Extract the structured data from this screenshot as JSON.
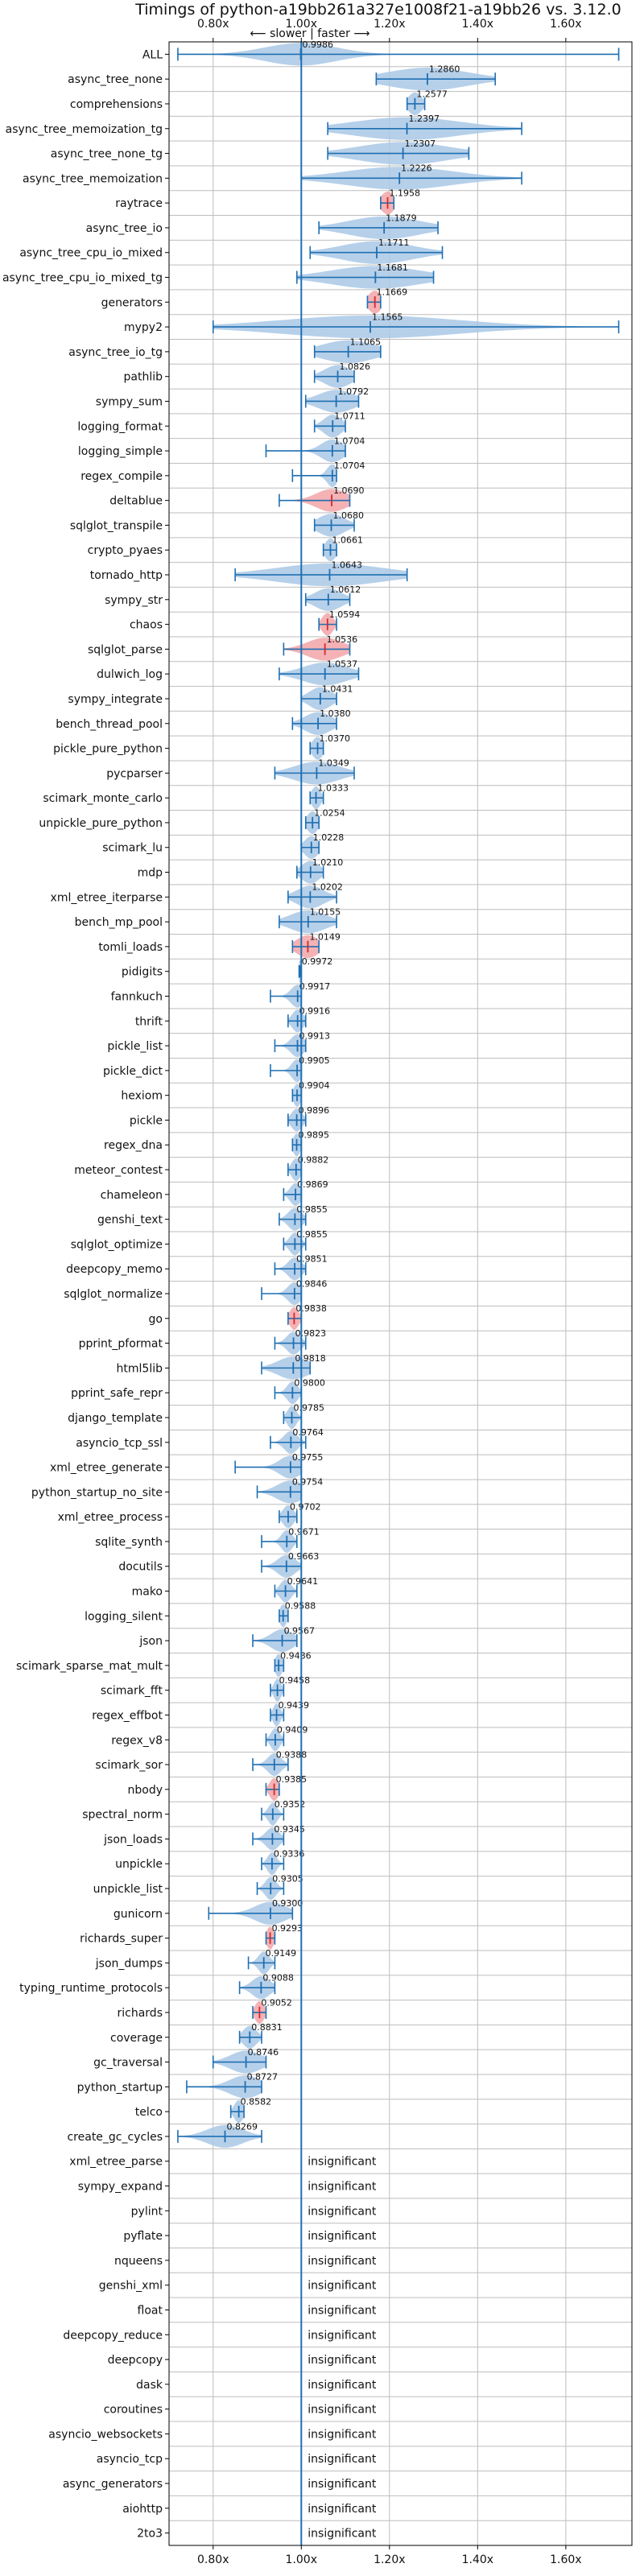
{
  "chart_data": {
    "type": "violin",
    "title": "Timings of python-a19bb261a327e1008f21-a19bb26 vs. 3.12.0",
    "subtitle": "⟵ slower | faster ⟶",
    "xlim": [
      0.7,
      1.75
    ],
    "xticks": [
      "0.80x",
      "1.00x",
      "1.20x",
      "1.40x",
      "1.60x"
    ],
    "xtick_values": [
      0.8,
      1.0,
      1.2,
      1.4,
      1.6
    ],
    "grid": true,
    "insignificant_label": "insignificant",
    "benchmarks": [
      {
        "name": "ALL",
        "value": 0.9986,
        "label": "0.9986",
        "low": 0.72,
        "high": 1.72,
        "spread": 0.08,
        "color": "blue"
      },
      {
        "name": "async_tree_none",
        "value": 1.286,
        "label": "1.2860",
        "low": 1.17,
        "high": 1.44,
        "spread": 0.09,
        "color": "blue"
      },
      {
        "name": "comprehensions",
        "value": 1.2577,
        "label": "1.2577",
        "low": 1.24,
        "high": 1.28,
        "spread": 0.015,
        "color": "blue"
      },
      {
        "name": "async_tree_memoization_tg",
        "value": 1.2397,
        "label": "1.2397",
        "low": 1.06,
        "high": 1.5,
        "spread": 0.12,
        "color": "blue"
      },
      {
        "name": "async_tree_none_tg",
        "value": 1.2307,
        "label": "1.2307",
        "low": 1.06,
        "high": 1.38,
        "spread": 0.1,
        "color": "blue"
      },
      {
        "name": "async_tree_memoization",
        "value": 1.2226,
        "label": "1.2226",
        "low": 1.0,
        "high": 1.5,
        "spread": 0.12,
        "color": "blue"
      },
      {
        "name": "raytrace",
        "value": 1.1958,
        "label": "1.1958",
        "low": 1.18,
        "high": 1.21,
        "spread": 0.015,
        "color": "red"
      },
      {
        "name": "async_tree_io",
        "value": 1.1879,
        "label": "1.1879",
        "low": 1.04,
        "high": 1.31,
        "spread": 0.08,
        "color": "blue"
      },
      {
        "name": "async_tree_cpu_io_mixed",
        "value": 1.1711,
        "label": "1.1711",
        "low": 1.02,
        "high": 1.32,
        "spread": 0.08,
        "color": "blue"
      },
      {
        "name": "async_tree_cpu_io_mixed_tg",
        "value": 1.1681,
        "label": "1.1681",
        "low": 0.99,
        "high": 1.3,
        "spread": 0.1,
        "color": "blue"
      },
      {
        "name": "generators",
        "value": 1.1669,
        "label": "1.1669",
        "low": 1.15,
        "high": 1.18,
        "spread": 0.015,
        "color": "red"
      },
      {
        "name": "mypy2",
        "value": 1.1565,
        "label": "1.1565",
        "low": 0.8,
        "high": 1.72,
        "spread": 0.2,
        "color": "blue"
      },
      {
        "name": "async_tree_io_tg",
        "value": 1.1065,
        "label": "1.1065",
        "low": 1.03,
        "high": 1.18,
        "spread": 0.06,
        "color": "blue"
      },
      {
        "name": "pathlib",
        "value": 1.0826,
        "label": "1.0826",
        "low": 1.03,
        "high": 1.12,
        "spread": 0.03,
        "color": "blue"
      },
      {
        "name": "sympy_sum",
        "value": 1.0792,
        "label": "1.0792",
        "low": 1.01,
        "high": 1.13,
        "spread": 0.04,
        "color": "blue"
      },
      {
        "name": "logging_format",
        "value": 1.0711,
        "label": "1.0711",
        "low": 1.03,
        "high": 1.1,
        "spread": 0.02,
        "color": "blue"
      },
      {
        "name": "logging_simple",
        "value": 1.0704,
        "label": "1.0704",
        "low": 0.92,
        "high": 1.1,
        "spread": 0.025,
        "color": "blue"
      },
      {
        "name": "regex_compile",
        "value": 1.0704,
        "label": "1.0704",
        "low": 0.98,
        "high": 1.08,
        "spread": 0.012,
        "color": "blue"
      },
      {
        "name": "deltablue",
        "value": 1.069,
        "label": "1.0690",
        "low": 0.95,
        "high": 1.11,
        "spread": 0.035,
        "color": "red"
      },
      {
        "name": "sqlglot_transpile",
        "value": 1.068,
        "label": "1.0680",
        "low": 1.03,
        "high": 1.12,
        "spread": 0.03,
        "color": "blue"
      },
      {
        "name": "crypto_pyaes",
        "value": 1.0661,
        "label": "1.0661",
        "low": 1.05,
        "high": 1.08,
        "spread": 0.012,
        "color": "blue"
      },
      {
        "name": "tornado_http",
        "value": 1.0643,
        "label": "1.0643",
        "low": 0.85,
        "high": 1.24,
        "spread": 0.12,
        "color": "blue"
      },
      {
        "name": "sympy_str",
        "value": 1.0612,
        "label": "1.0612",
        "low": 1.01,
        "high": 1.11,
        "spread": 0.03,
        "color": "blue"
      },
      {
        "name": "chaos",
        "value": 1.0594,
        "label": "1.0594",
        "low": 1.04,
        "high": 1.08,
        "spread": 0.012,
        "color": "red"
      },
      {
        "name": "sqlglot_parse",
        "value": 1.0536,
        "label": "1.0536",
        "low": 0.96,
        "high": 1.11,
        "spread": 0.04,
        "color": "red"
      },
      {
        "name": "dulwich_log",
        "value": 1.0537,
        "label": "1.0537",
        "low": 0.95,
        "high": 1.13,
        "spread": 0.05,
        "color": "blue"
      },
      {
        "name": "sympy_integrate",
        "value": 1.0431,
        "label": "1.0431",
        "low": 1.0,
        "high": 1.08,
        "spread": 0.025,
        "color": "blue"
      },
      {
        "name": "bench_thread_pool",
        "value": 1.038,
        "label": "1.0380",
        "low": 0.98,
        "high": 1.08,
        "spread": 0.03,
        "color": "blue"
      },
      {
        "name": "pickle_pure_python",
        "value": 1.037,
        "label": "1.0370",
        "low": 1.02,
        "high": 1.05,
        "spread": 0.012,
        "color": "blue"
      },
      {
        "name": "pycparser",
        "value": 1.0349,
        "label": "1.0349",
        "low": 0.94,
        "high": 1.12,
        "spread": 0.05,
        "color": "blue"
      },
      {
        "name": "scimark_monte_carlo",
        "value": 1.0333,
        "label": "1.0333",
        "low": 1.02,
        "high": 1.05,
        "spread": 0.01,
        "color": "blue"
      },
      {
        "name": "unpickle_pure_python",
        "value": 1.0254,
        "label": "1.0254",
        "low": 1.01,
        "high": 1.04,
        "spread": 0.012,
        "color": "blue"
      },
      {
        "name": "scimark_lu",
        "value": 1.0228,
        "label": "1.0228",
        "low": 1.0,
        "high": 1.04,
        "spread": 0.015,
        "color": "blue"
      },
      {
        "name": "mdp",
        "value": 1.021,
        "label": "1.0210",
        "low": 0.99,
        "high": 1.05,
        "spread": 0.02,
        "color": "blue"
      },
      {
        "name": "xml_etree_iterparse",
        "value": 1.0202,
        "label": "1.0202",
        "low": 0.97,
        "high": 1.08,
        "spread": 0.03,
        "color": "blue"
      },
      {
        "name": "bench_mp_pool",
        "value": 1.0155,
        "label": "1.0155",
        "low": 0.95,
        "high": 1.08,
        "spread": 0.04,
        "color": "blue"
      },
      {
        "name": "tomli_loads",
        "value": 1.0149,
        "label": "1.0149",
        "low": 0.98,
        "high": 1.04,
        "spread": 0.025,
        "color": "red"
      },
      {
        "name": "pidigits",
        "value": 0.9972,
        "label": "0.9972",
        "low": 0.995,
        "high": 1.0,
        "spread": 0.004,
        "color": "blue"
      },
      {
        "name": "fannkuch",
        "value": 0.9917,
        "label": "0.9917",
        "low": 0.93,
        "high": 1.0,
        "spread": 0.015,
        "color": "blue"
      },
      {
        "name": "thrift",
        "value": 0.9916,
        "label": "0.9916",
        "low": 0.97,
        "high": 1.01,
        "spread": 0.012,
        "color": "blue"
      },
      {
        "name": "pickle_list",
        "value": 0.9913,
        "label": "0.9913",
        "low": 0.94,
        "high": 1.01,
        "spread": 0.015,
        "color": "blue"
      },
      {
        "name": "pickle_dict",
        "value": 0.9905,
        "label": "0.9905",
        "low": 0.93,
        "high": 1.0,
        "spread": 0.012,
        "color": "blue"
      },
      {
        "name": "hexiom",
        "value": 0.9904,
        "label": "0.9904",
        "low": 0.98,
        "high": 1.0,
        "spread": 0.008,
        "color": "blue"
      },
      {
        "name": "pickle",
        "value": 0.9896,
        "label": "0.9896",
        "low": 0.97,
        "high": 1.01,
        "spread": 0.012,
        "color": "blue"
      },
      {
        "name": "regex_dna",
        "value": 0.9895,
        "label": "0.9895",
        "low": 0.98,
        "high": 1.0,
        "spread": 0.008,
        "color": "blue"
      },
      {
        "name": "meteor_contest",
        "value": 0.9882,
        "label": "0.9882",
        "low": 0.97,
        "high": 1.0,
        "spread": 0.01,
        "color": "blue"
      },
      {
        "name": "chameleon",
        "value": 0.9869,
        "label": "0.9869",
        "low": 0.96,
        "high": 1.0,
        "spread": 0.012,
        "color": "blue"
      },
      {
        "name": "genshi_text",
        "value": 0.9855,
        "label": "0.9855",
        "low": 0.95,
        "high": 1.01,
        "spread": 0.015,
        "color": "blue"
      },
      {
        "name": "sqlglot_optimize",
        "value": 0.9855,
        "label": "0.9855",
        "low": 0.96,
        "high": 1.01,
        "spread": 0.012,
        "color": "blue"
      },
      {
        "name": "deepcopy_memo",
        "value": 0.9851,
        "label": "0.9851",
        "low": 0.94,
        "high": 1.01,
        "spread": 0.015,
        "color": "blue"
      },
      {
        "name": "sqlglot_normalize",
        "value": 0.9846,
        "label": "0.9846",
        "low": 0.91,
        "high": 1.0,
        "spread": 0.015,
        "color": "blue"
      },
      {
        "name": "go",
        "value": 0.9838,
        "label": "0.9838",
        "low": 0.97,
        "high": 1.0,
        "spread": 0.01,
        "color": "red"
      },
      {
        "name": "pprint_pformat",
        "value": 0.9823,
        "label": "0.9823",
        "low": 0.94,
        "high": 1.01,
        "spread": 0.015,
        "color": "blue"
      },
      {
        "name": "html5lib",
        "value": 0.9818,
        "label": "0.9818",
        "low": 0.91,
        "high": 1.02,
        "spread": 0.035,
        "color": "blue"
      },
      {
        "name": "pprint_safe_repr",
        "value": 0.98,
        "label": "0.9800",
        "low": 0.94,
        "high": 1.0,
        "spread": 0.012,
        "color": "blue"
      },
      {
        "name": "django_template",
        "value": 0.9785,
        "label": "0.9785",
        "low": 0.96,
        "high": 1.0,
        "spread": 0.01,
        "color": "blue"
      },
      {
        "name": "asyncio_tcp_ssl",
        "value": 0.9764,
        "label": "0.9764",
        "low": 0.93,
        "high": 1.01,
        "spread": 0.015,
        "color": "blue"
      },
      {
        "name": "xml_etree_generate",
        "value": 0.9755,
        "label": "0.9755",
        "low": 0.85,
        "high": 1.0,
        "spread": 0.025,
        "color": "blue"
      },
      {
        "name": "python_startup_no_site",
        "value": 0.9754,
        "label": "0.9754",
        "low": 0.9,
        "high": 1.0,
        "spread": 0.03,
        "color": "blue"
      },
      {
        "name": "xml_etree_process",
        "value": 0.9702,
        "label": "0.9702",
        "low": 0.95,
        "high": 0.99,
        "spread": 0.012,
        "color": "blue"
      },
      {
        "name": "sqlite_synth",
        "value": 0.9671,
        "label": "0.9671",
        "low": 0.91,
        "high": 0.99,
        "spread": 0.012,
        "color": "blue"
      },
      {
        "name": "docutils",
        "value": 0.9663,
        "label": "0.9663",
        "low": 0.91,
        "high": 1.0,
        "spread": 0.02,
        "color": "blue"
      },
      {
        "name": "mako",
        "value": 0.9641,
        "label": "0.9641",
        "low": 0.94,
        "high": 0.99,
        "spread": 0.012,
        "color": "blue"
      },
      {
        "name": "logging_silent",
        "value": 0.9588,
        "label": "0.9588",
        "low": 0.95,
        "high": 0.97,
        "spread": 0.008,
        "color": "blue"
      },
      {
        "name": "json",
        "value": 0.9567,
        "label": "0.9567",
        "low": 0.89,
        "high": 0.99,
        "spread": 0.025,
        "color": "blue"
      },
      {
        "name": "scimark_sparse_mat_mult",
        "value": 0.9486,
        "label": "0.9486",
        "low": 0.94,
        "high": 0.96,
        "spread": 0.008,
        "color": "blue"
      },
      {
        "name": "scimark_fft",
        "value": 0.9458,
        "label": "0.9458",
        "low": 0.93,
        "high": 0.96,
        "spread": 0.008,
        "color": "blue"
      },
      {
        "name": "regex_effbot",
        "value": 0.9439,
        "label": "0.9439",
        "low": 0.93,
        "high": 0.96,
        "spread": 0.008,
        "color": "blue"
      },
      {
        "name": "regex_v8",
        "value": 0.9409,
        "label": "0.9409",
        "low": 0.92,
        "high": 0.96,
        "spread": 0.01,
        "color": "blue"
      },
      {
        "name": "scimark_sor",
        "value": 0.9388,
        "label": "0.9388",
        "low": 0.89,
        "high": 0.97,
        "spread": 0.015,
        "color": "blue"
      },
      {
        "name": "nbody",
        "value": 0.9385,
        "label": "0.9385",
        "low": 0.92,
        "high": 0.95,
        "spread": 0.01,
        "color": "red"
      },
      {
        "name": "spectral_norm",
        "value": 0.9352,
        "label": "0.9352",
        "low": 0.91,
        "high": 0.96,
        "spread": 0.01,
        "color": "blue"
      },
      {
        "name": "json_loads",
        "value": 0.9345,
        "label": "0.9345",
        "low": 0.89,
        "high": 0.96,
        "spread": 0.015,
        "color": "blue"
      },
      {
        "name": "unpickle",
        "value": 0.9336,
        "label": "0.9336",
        "low": 0.91,
        "high": 0.96,
        "spread": 0.01,
        "color": "blue"
      },
      {
        "name": "unpickle_list",
        "value": 0.9305,
        "label": "0.9305",
        "low": 0.9,
        "high": 0.96,
        "spread": 0.012,
        "color": "blue"
      },
      {
        "name": "gunicorn",
        "value": 0.93,
        "label": "0.9300",
        "low": 0.79,
        "high": 0.98,
        "spread": 0.035,
        "color": "blue"
      },
      {
        "name": "richards_super",
        "value": 0.9293,
        "label": "0.9293",
        "low": 0.92,
        "high": 0.94,
        "spread": 0.008,
        "color": "red"
      },
      {
        "name": "json_dumps",
        "value": 0.9149,
        "label": "0.9149",
        "low": 0.88,
        "high": 0.94,
        "spread": 0.012,
        "color": "blue"
      },
      {
        "name": "typing_runtime_protocols",
        "value": 0.9088,
        "label": "0.9088",
        "low": 0.86,
        "high": 0.94,
        "spread": 0.02,
        "color": "blue"
      },
      {
        "name": "richards",
        "value": 0.9052,
        "label": "0.9052",
        "low": 0.89,
        "high": 0.92,
        "spread": 0.01,
        "color": "red"
      },
      {
        "name": "coverage",
        "value": 0.8831,
        "label": "0.8831",
        "low": 0.86,
        "high": 0.91,
        "spread": 0.015,
        "color": "blue"
      },
      {
        "name": "gc_traversal",
        "value": 0.8746,
        "label": "0.8746",
        "low": 0.8,
        "high": 0.92,
        "spread": 0.035,
        "color": "blue"
      },
      {
        "name": "python_startup",
        "value": 0.8727,
        "label": "0.8727",
        "low": 0.74,
        "high": 0.91,
        "spread": 0.035,
        "color": "blue"
      },
      {
        "name": "telco",
        "value": 0.8582,
        "label": "0.8582",
        "low": 0.84,
        "high": 0.87,
        "spread": 0.01,
        "color": "blue"
      },
      {
        "name": "create_gc_cycles",
        "value": 0.8269,
        "label": "0.8269",
        "low": 0.72,
        "high": 0.91,
        "spread": 0.04,
        "color": "blue"
      },
      {
        "name": "xml_etree_parse",
        "insignificant": true
      },
      {
        "name": "sympy_expand",
        "insignificant": true
      },
      {
        "name": "pylint",
        "insignificant": true
      },
      {
        "name": "pyflate",
        "insignificant": true
      },
      {
        "name": "nqueens",
        "insignificant": true
      },
      {
        "name": "genshi_xml",
        "insignificant": true
      },
      {
        "name": "float",
        "insignificant": true
      },
      {
        "name": "deepcopy_reduce",
        "insignificant": true
      },
      {
        "name": "deepcopy",
        "insignificant": true
      },
      {
        "name": "dask",
        "insignificant": true
      },
      {
        "name": "coroutines",
        "insignificant": true
      },
      {
        "name": "asyncio_websockets",
        "insignificant": true
      },
      {
        "name": "asyncio_tcp",
        "insignificant": true
      },
      {
        "name": "async_generators",
        "insignificant": true
      },
      {
        "name": "aiohttp",
        "insignificant": true
      },
      {
        "name": "2to3",
        "insignificant": true
      }
    ]
  },
  "colors": {
    "blue_fill": "#a9c8e6",
    "red_fill": "#f2a5a8",
    "line": "#1f6fb2",
    "median_red": "#d62728",
    "grid": "#bdbdbd",
    "baseline": "#1f6fb2"
  }
}
